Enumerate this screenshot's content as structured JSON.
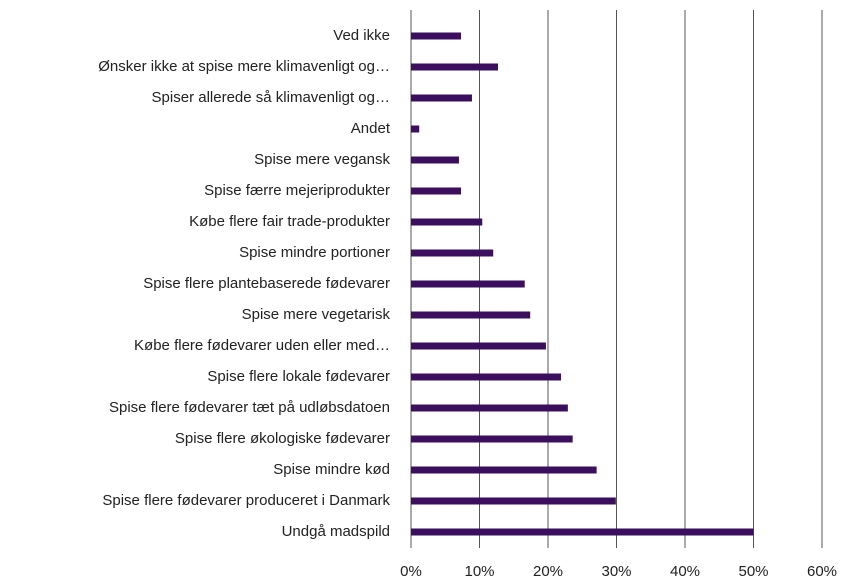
{
  "chart_data": {
    "type": "bar",
    "orientation": "horizontal",
    "categories": [
      "Ved ikke",
      "Ønsker ikke at spise mere klimavenligt og…",
      "Spiser allerede så klimavenligt og…",
      "Andet",
      "Spise mere vegansk",
      "Spise færre mejeriprodukter",
      "Købe flere fair trade-produkter",
      "Spise mindre portioner",
      "Spise flere plantebaserede fødevarer",
      "Spise mere vegetarisk",
      "Købe flere fødevarer uden eller med…",
      "Spise flere lokale fødevarer",
      "Spise flere fødevarer tæt på udløbsdatoen",
      "Spise flere økologiske fødevarer",
      "Spise mindre kød",
      "Spise flere fødevarer produceret i Danmark",
      "Undgå madspild"
    ],
    "values": [
      7.3,
      12.7,
      8.9,
      1.2,
      7.0,
      7.3,
      10.4,
      12.0,
      16.6,
      17.4,
      19.7,
      21.9,
      22.9,
      23.6,
      27.1,
      29.9,
      50
    ],
    "color": "#3b0f5e",
    "xlim": [
      0,
      60
    ],
    "xticks": [
      {
        "value": 0,
        "label": "0%"
      },
      {
        "value": 10,
        "label": "10%"
      },
      {
        "value": 20,
        "label": "20%"
      },
      {
        "value": 30,
        "label": "30%"
      },
      {
        "value": 40,
        "label": "40%"
      },
      {
        "value": 50,
        "label": "50%"
      },
      {
        "value": 60,
        "label": "60%"
      }
    ],
    "grid": true
  }
}
